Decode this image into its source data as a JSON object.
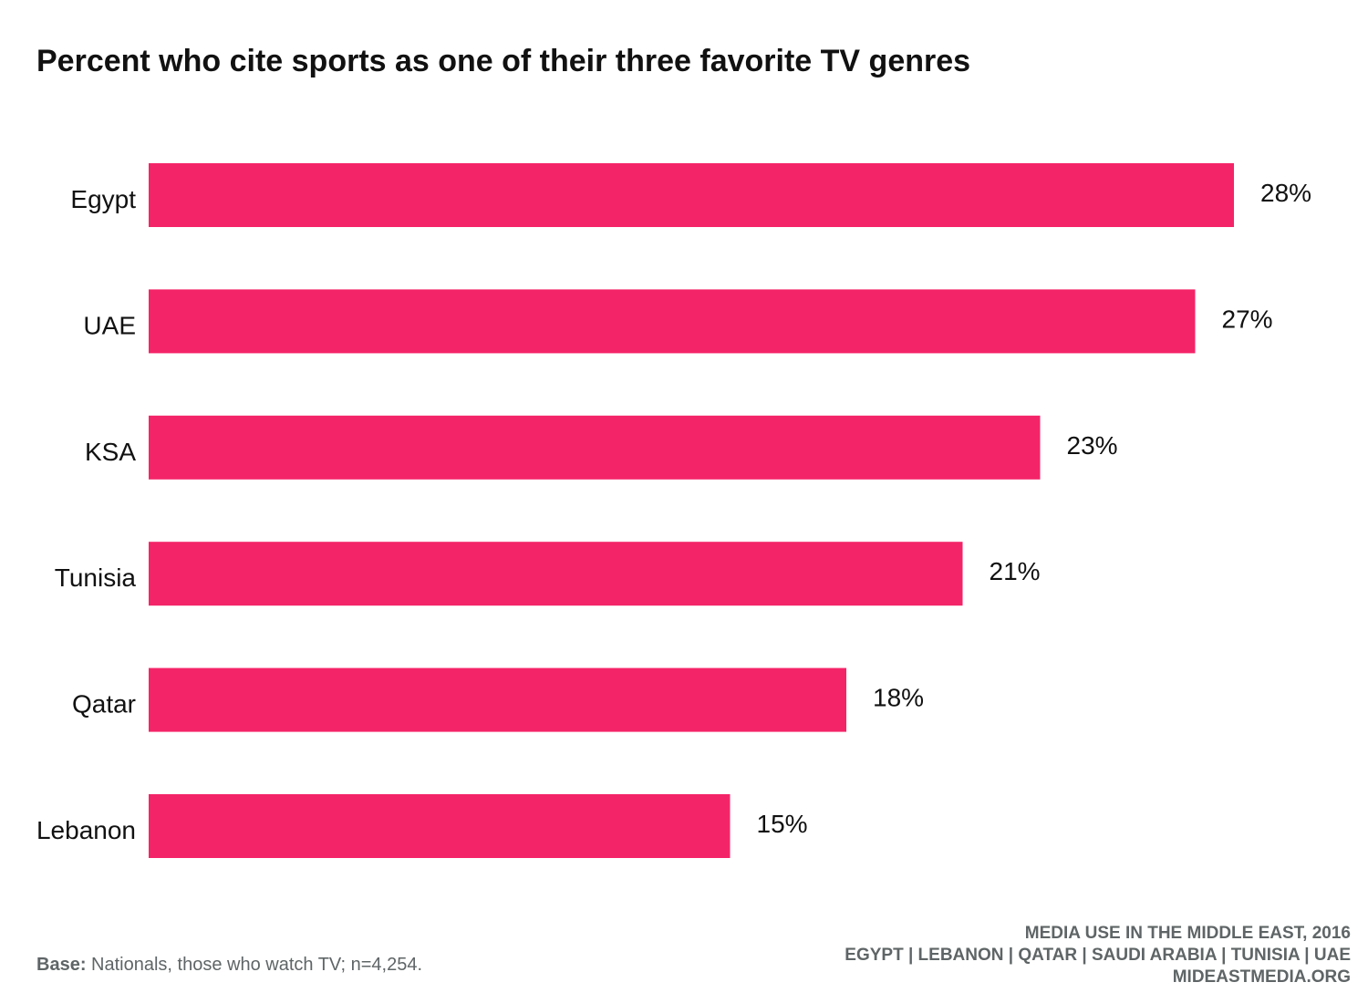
{
  "title": "Percent who cite sports as one of their three favorite TV genres",
  "base_note": {
    "label": "Base:",
    "text": " Nationals, those who watch TV; n=4,254."
  },
  "source": {
    "line1": "MEDIA USE IN THE MIDDLE EAST, 2016",
    "line2": "EGYPT | LEBANON | QATAR | SAUDI ARABIA | TUNISIA | UAE",
    "line3": "MIDEASTMEDIA.ORG"
  },
  "colors": {
    "bar": "#f42468",
    "text": "#111111",
    "footer": "#5f6566"
  },
  "chart_data": {
    "type": "bar",
    "orientation": "horizontal",
    "categories": [
      "Egypt",
      "UAE",
      "KSA",
      "Tunisia",
      "Qatar",
      "Lebanon"
    ],
    "values": [
      28,
      27,
      23,
      21,
      18,
      15
    ],
    "value_labels": [
      "28%",
      "27%",
      "23%",
      "21%",
      "18%",
      "15%"
    ],
    "title": "Percent who cite sports as one of their three favorite TV genres",
    "xlabel": "",
    "ylabel": "",
    "xlim": [
      0,
      28
    ],
    "grid": false,
    "legend": "none"
  }
}
